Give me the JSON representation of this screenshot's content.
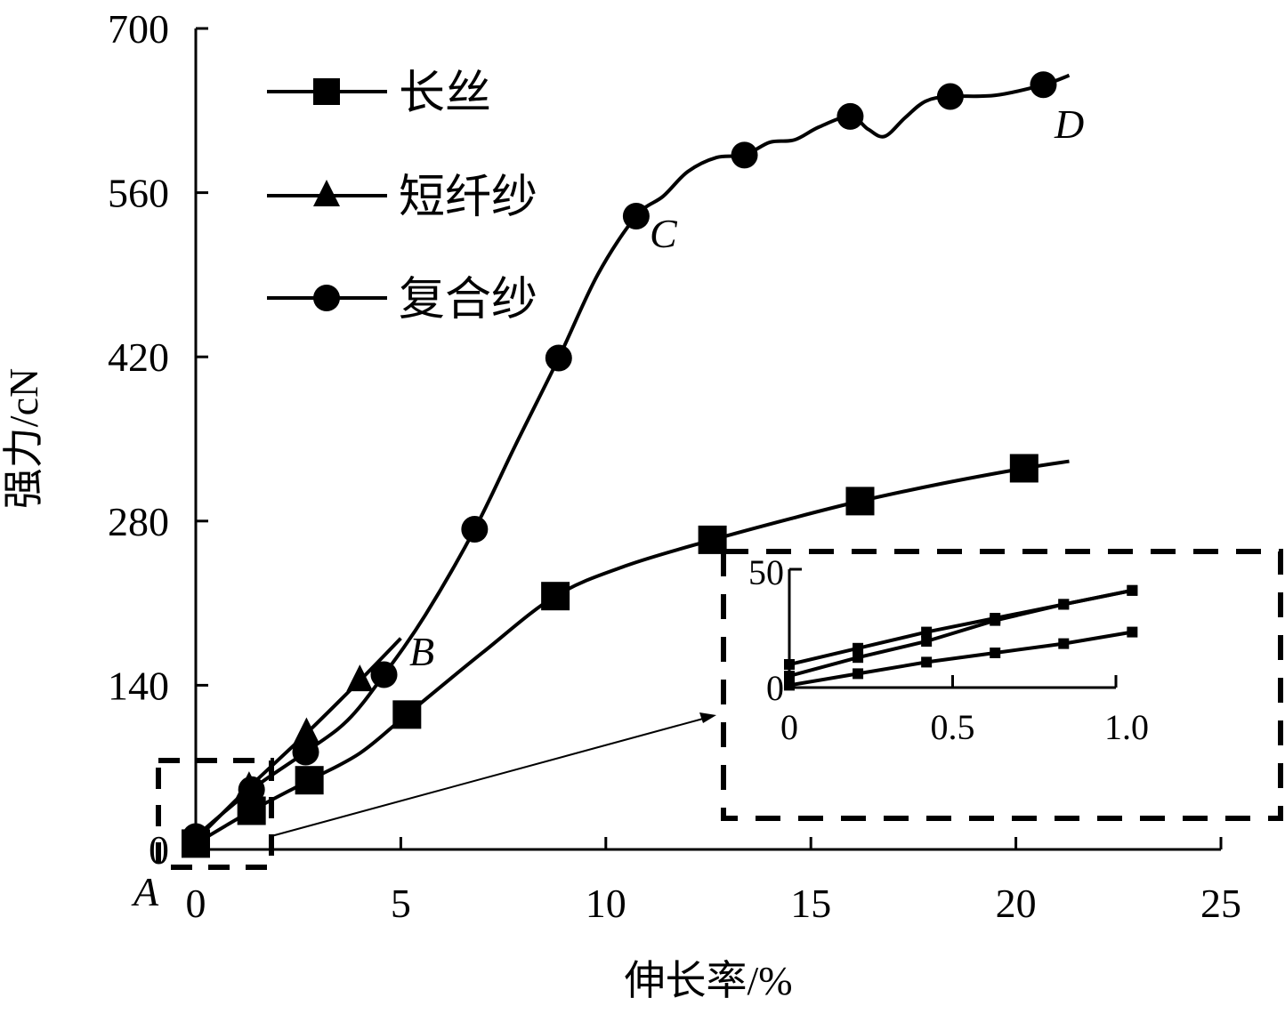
{
  "chart_data": {
    "type": "line",
    "title": "",
    "xlabel": "伸长率/%",
    "ylabel": "强力/cN",
    "xlim": [
      0,
      25
    ],
    "ylim": [
      0,
      700
    ],
    "xticks": [
      0,
      5,
      10,
      15,
      20,
      25
    ],
    "yticks": [
      0,
      140,
      280,
      420,
      560,
      700
    ],
    "grid": false,
    "legend_position": "top-left",
    "series": [
      {
        "name": "长丝",
        "marker": "square",
        "x": [
          0,
          1.36,
          2.77,
          5.15,
          8.77,
          12.6,
          16.2,
          20.2
        ],
        "y": [
          5,
          33,
          59,
          115,
          216,
          264,
          297,
          325
        ],
        "curve_x": [
          0,
          1.36,
          2.77,
          4.0,
          5.15,
          7.0,
          8.77,
          10.5,
          12.6,
          14.5,
          16.2,
          18.2,
          20.2,
          21.3
        ],
        "curve_y": [
          5,
          33,
          59,
          82,
          115,
          168,
          216,
          242,
          264,
          282,
          297,
          312,
          325,
          331
        ]
      },
      {
        "name": "短纤纱",
        "marker": "triangle",
        "x": [
          0,
          1.3,
          2.7,
          4.0
        ],
        "y": [
          8,
          53,
          99,
          144
        ],
        "curve_x": [
          0,
          1.3,
          2.7,
          4.0,
          5.0
        ],
        "curve_y": [
          8,
          53,
          99,
          144,
          180
        ]
      },
      {
        "name": "复合纱",
        "marker": "circle",
        "x": [
          0,
          1.36,
          2.68,
          4.59,
          6.8,
          8.85,
          10.74,
          13.38,
          15.96,
          18.4,
          20.67
        ],
        "y": [
          11,
          51,
          83,
          149,
          273,
          419,
          540,
          592,
          625,
          642,
          652
        ],
        "curve_x": [
          0,
          1.36,
          2.68,
          3.7,
          4.59,
          5.6,
          6.8,
          7.8,
          8.85,
          9.8,
          10.74,
          11.4,
          12.0,
          12.7,
          13.38,
          14.0,
          14.6,
          15.2,
          15.96,
          16.4,
          16.8,
          17.3,
          17.8,
          18.4,
          19.5,
          20.67,
          21.3
        ],
        "curve_y": [
          11,
          51,
          83,
          110,
          149,
          200,
          273,
          345,
          419,
          490,
          540,
          557,
          578,
          590,
          592,
          603,
          605,
          616,
          625,
          614,
          608,
          624,
          638,
          642,
          643,
          652,
          660
        ]
      }
    ],
    "annotations": [
      {
        "label": "A",
        "x": 0,
        "y": 0
      },
      {
        "label": "B",
        "x": 5.0,
        "y": 180
      },
      {
        "label": "C",
        "x": 10.74,
        "y": 540
      },
      {
        "label": "D",
        "x": 20.67,
        "y": 652
      }
    ],
    "inset": {
      "xlim": [
        0,
        1.05
      ],
      "ylim": [
        0,
        50
      ],
      "xticks": [
        0,
        0.5,
        1.0
      ],
      "xtick_labels": [
        "0",
        "0.5",
        "1.0"
      ],
      "yticks": [
        0,
        50
      ],
      "series": [
        {
          "name": "复合纱",
          "x": [
            0,
            0.2,
            0.4,
            0.6,
            0.8,
            1.0
          ],
          "y": [
            10,
            17,
            24,
            30,
            36,
            42
          ]
        },
        {
          "name": "短纤纱",
          "x": [
            0,
            0.2,
            0.4,
            0.6,
            0.8,
            1.0
          ],
          "y": [
            5,
            13,
            20,
            29,
            36,
            42
          ]
        },
        {
          "name": "长丝",
          "x": [
            0,
            0.2,
            0.4,
            0.6,
            0.8,
            1.0
          ],
          "y": [
            1,
            6,
            11,
            15,
            19,
            24
          ]
        }
      ]
    }
  }
}
